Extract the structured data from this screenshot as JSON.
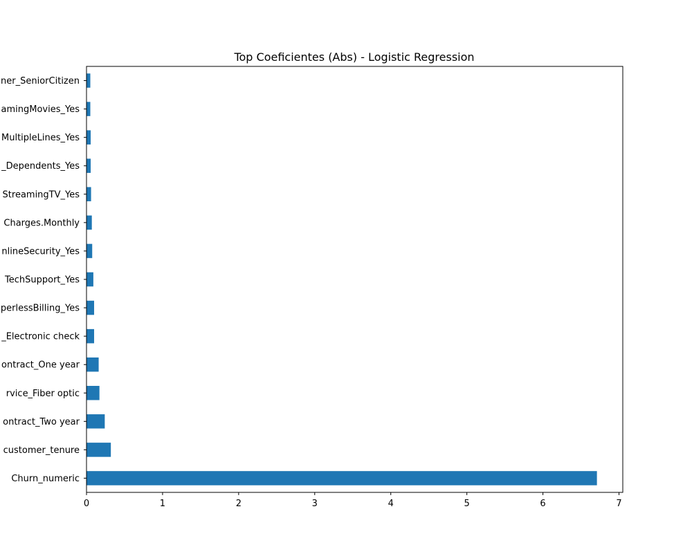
{
  "chart_data": {
    "type": "bar",
    "orientation": "horizontal",
    "title": "Top Coeficientes (Abs) - Logistic Regression",
    "xlabel": "",
    "ylabel": "",
    "xlim": [
      0,
      7.05
    ],
    "xticks": [
      0,
      1,
      2,
      3,
      4,
      5,
      6,
      7
    ],
    "grid": false,
    "legend": "none",
    "bar_color": "#1f77b4",
    "categories": [
      "Churn_numeric",
      "customer_tenure",
      "account_Contract_Two year",
      "internet_InternetService_Fiber optic",
      "account_Contract_One year",
      "account_PaymentMethod_Electronic check",
      "account_PaperlessBilling_Yes",
      "internet_TechSupport_Yes",
      "internet_OnlineSecurity_Yes",
      "account_Charges.Monthly",
      "internet_StreamingTV_Yes",
      "customer_Dependents_Yes",
      "phone_MultipleLines_Yes",
      "internet_StreamingMovies_Yes",
      "customer_SeniorCitizen"
    ],
    "tick_labels": [
      "Churn_numeric",
      "customer_tenure",
      "ontract_Two year",
      "rvice_Fiber optic",
      "ontract_One year",
      "_Electronic check",
      "perlessBilling_Yes",
      "TechSupport_Yes",
      "nlineSecurity_Yes",
      "Charges.Monthly",
      "StreamingTV_Yes",
      "_Dependents_Yes",
      "MultipleLines_Yes",
      "amingMovies_Yes",
      "ner_SeniorCitizen"
    ],
    "values": [
      6.71,
      0.32,
      0.24,
      0.17,
      0.16,
      0.1,
      0.1,
      0.09,
      0.075,
      0.07,
      0.06,
      0.055,
      0.055,
      0.05,
      0.05
    ]
  }
}
